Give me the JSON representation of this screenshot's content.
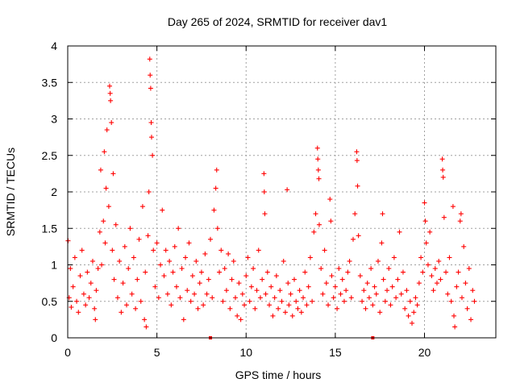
{
  "chart_data": {
    "type": "scatter",
    "title": "Day 265 of 2024, SRMTID for receiver dav1",
    "xlabel": "GPS time / hours",
    "ylabel": "SRMTID / TECUs",
    "xlim": [
      0,
      24
    ],
    "ylim": [
      0,
      4
    ],
    "x_ticks": [
      0,
      5,
      10,
      15,
      20
    ],
    "x_tick_labels": [
      "0",
      "5",
      "10",
      "15",
      "20"
    ],
    "y_ticks": [
      0,
      0.5,
      1,
      1.5,
      2,
      2.5,
      3,
      3.5,
      4
    ],
    "y_tick_labels": [
      "0",
      "0.5",
      "1",
      "1.5",
      "2",
      "2.5",
      "3",
      "3.5",
      "4"
    ],
    "grid": true,
    "marker": "+",
    "series": [
      {
        "name": "SRMTID",
        "color": "#ff0000",
        "points": [
          [
            0.02,
            1.33
          ],
          [
            0.08,
            0.55
          ],
          [
            0.15,
            0.95
          ],
          [
            0.2,
            0.42
          ],
          [
            0.3,
            0.7
          ],
          [
            0.4,
            1.1
          ],
          [
            0.5,
            0.5
          ],
          [
            0.6,
            0.35
          ],
          [
            0.7,
            0.85
          ],
          [
            0.8,
            1.2
          ],
          [
            0.9,
            0.6
          ],
          [
            1.0,
            0.45
          ],
          [
            1.1,
            0.9
          ],
          [
            1.2,
            0.55
          ],
          [
            1.3,
            0.75
          ],
          [
            1.4,
            1.05
          ],
          [
            1.5,
            0.4
          ],
          [
            1.55,
            0.25
          ],
          [
            1.6,
            0.65
          ],
          [
            1.7,
            0.95
          ],
          [
            1.8,
            1.45
          ],
          [
            1.85,
            2.3
          ],
          [
            1.9,
            1.0
          ],
          [
            2.0,
            1.6
          ],
          [
            2.05,
            2.55
          ],
          [
            2.1,
            1.3
          ],
          [
            2.15,
            2.05
          ],
          [
            2.2,
            2.85
          ],
          [
            2.3,
            1.8
          ],
          [
            2.35,
            3.45
          ],
          [
            2.38,
            3.35
          ],
          [
            2.4,
            3.25
          ],
          [
            2.45,
            2.95
          ],
          [
            2.5,
            1.2
          ],
          [
            2.55,
            2.25
          ],
          [
            2.6,
            0.8
          ],
          [
            2.7,
            1.55
          ],
          [
            2.8,
            0.55
          ],
          [
            2.9,
            1.05
          ],
          [
            3.0,
            0.35
          ],
          [
            3.1,
            0.75
          ],
          [
            3.2,
            1.25
          ],
          [
            3.3,
            0.45
          ],
          [
            3.4,
            0.95
          ],
          [
            3.5,
            1.5
          ],
          [
            3.6,
            0.6
          ],
          [
            3.7,
            1.1
          ],
          [
            3.8,
            0.4
          ],
          [
            3.9,
            0.8
          ],
          [
            4.0,
            1.35
          ],
          [
            4.1,
            0.5
          ],
          [
            4.2,
            1.8
          ],
          [
            4.3,
            0.25
          ],
          [
            4.35,
            0.9
          ],
          [
            4.4,
            0.15
          ],
          [
            4.5,
            1.4
          ],
          [
            4.55,
            2.0
          ],
          [
            4.6,
            3.82
          ],
          [
            4.62,
            3.6
          ],
          [
            4.65,
            3.42
          ],
          [
            4.68,
            2.95
          ],
          [
            4.7,
            2.75
          ],
          [
            4.75,
            2.5
          ],
          [
            4.8,
            1.2
          ],
          [
            4.9,
            0.7
          ],
          [
            5.0,
            1.3
          ],
          [
            5.1,
            0.55
          ],
          [
            5.2,
            1.0
          ],
          [
            5.3,
            1.75
          ],
          [
            5.4,
            0.85
          ],
          [
            5.5,
            1.2
          ],
          [
            5.6,
            0.6
          ],
          [
            5.7,
            1.05
          ],
          [
            5.8,
            0.45
          ],
          [
            5.9,
            0.9
          ],
          [
            6.0,
            1.25
          ],
          [
            6.1,
            0.7
          ],
          [
            6.2,
            1.5
          ],
          [
            6.3,
            0.55
          ],
          [
            6.4,
            0.95
          ],
          [
            6.5,
            0.25
          ],
          [
            6.6,
            1.1
          ],
          [
            6.7,
            0.65
          ],
          [
            6.8,
            1.3
          ],
          [
            6.9,
            0.5
          ],
          [
            7.0,
            0.85
          ],
          [
            7.1,
            0.6
          ],
          [
            7.2,
            1.05
          ],
          [
            7.3,
            0.4
          ],
          [
            7.4,
            0.75
          ],
          [
            7.5,
            0.9
          ],
          [
            7.6,
            0.45
          ],
          [
            7.7,
            1.15
          ],
          [
            7.8,
            0.6
          ],
          [
            7.9,
            0.8
          ],
          [
            8.0,
            1.35
          ],
          [
            8.1,
            0.55
          ],
          [
            8.2,
            1.75
          ],
          [
            8.3,
            2.05
          ],
          [
            8.35,
            2.3
          ],
          [
            8.4,
            1.5
          ],
          [
            8.5,
            0.9
          ],
          [
            8.6,
            1.2
          ],
          [
            8.7,
            0.5
          ],
          [
            8.8,
            0.95
          ],
          [
            8.9,
            0.65
          ],
          [
            9.0,
            1.15
          ],
          [
            9.1,
            0.4
          ],
          [
            9.2,
            0.8
          ],
          [
            9.3,
            1.05
          ],
          [
            9.4,
            0.55
          ],
          [
            9.5,
            0.3
          ],
          [
            9.6,
            0.75
          ],
          [
            9.7,
            0.25
          ],
          [
            9.8,
            0.6
          ],
          [
            9.9,
            0.45
          ],
          [
            10.0,
            0.85
          ],
          [
            10.1,
            1.1
          ],
          [
            10.2,
            0.5
          ],
          [
            10.3,
            0.7
          ],
          [
            10.4,
            0.95
          ],
          [
            10.5,
            0.4
          ],
          [
            10.6,
            0.65
          ],
          [
            10.7,
            1.2
          ],
          [
            10.8,
            0.55
          ],
          [
            10.9,
            0.8
          ],
          [
            11.0,
            2.25
          ],
          [
            11.02,
            2.0
          ],
          [
            11.05,
            1.7
          ],
          [
            11.1,
            0.6
          ],
          [
            11.2,
            0.9
          ],
          [
            11.3,
            0.45
          ],
          [
            11.4,
            0.7
          ],
          [
            11.5,
            0.3
          ],
          [
            11.6,
            0.55
          ],
          [
            11.7,
            0.85
          ],
          [
            11.8,
            0.4
          ],
          [
            11.9,
            0.65
          ],
          [
            12.0,
            0.5
          ],
          [
            12.1,
            1.05
          ],
          [
            12.2,
            0.35
          ],
          [
            12.3,
            2.03
          ],
          [
            12.35,
            0.75
          ],
          [
            12.4,
            0.45
          ],
          [
            12.5,
            0.6
          ],
          [
            12.6,
            0.3
          ],
          [
            12.7,
            0.8
          ],
          [
            12.8,
            0.5
          ],
          [
            12.9,
            0.4
          ],
          [
            13.0,
            0.65
          ],
          [
            13.1,
            0.35
          ],
          [
            13.2,
            0.55
          ],
          [
            13.3,
            0.9
          ],
          [
            13.4,
            0.45
          ],
          [
            13.5,
            0.7
          ],
          [
            13.6,
            1.1
          ],
          [
            13.7,
            0.5
          ],
          [
            13.8,
            1.45
          ],
          [
            13.9,
            1.7
          ],
          [
            14.0,
            2.6
          ],
          [
            14.02,
            2.45
          ],
          [
            14.05,
            2.3
          ],
          [
            14.08,
            2.18
          ],
          [
            14.1,
            1.55
          ],
          [
            14.2,
            0.95
          ],
          [
            14.3,
            0.6
          ],
          [
            14.4,
            1.2
          ],
          [
            14.5,
            0.75
          ],
          [
            14.6,
            0.45
          ],
          [
            14.7,
            1.9
          ],
          [
            14.75,
            1.6
          ],
          [
            14.8,
            0.85
          ],
          [
            14.9,
            0.55
          ],
          [
            15.0,
            0.7
          ],
          [
            15.1,
            0.4
          ],
          [
            15.2,
            0.95
          ],
          [
            15.3,
            0.6
          ],
          [
            15.4,
            0.8
          ],
          [
            15.5,
            0.5
          ],
          [
            15.6,
            0.65
          ],
          [
            15.7,
            0.9
          ],
          [
            15.8,
            1.05
          ],
          [
            15.9,
            0.55
          ],
          [
            16.0,
            1.35
          ],
          [
            16.1,
            1.7
          ],
          [
            16.2,
            2.55
          ],
          [
            16.22,
            2.43
          ],
          [
            16.25,
            2.08
          ],
          [
            16.3,
            1.4
          ],
          [
            16.4,
            0.85
          ],
          [
            16.5,
            0.5
          ],
          [
            16.6,
            0.65
          ],
          [
            16.7,
            0.4
          ],
          [
            16.8,
            0.75
          ],
          [
            16.9,
            0.55
          ],
          [
            17.0,
            0.95
          ],
          [
            17.1,
            0.45
          ],
          [
            17.2,
            0.7
          ],
          [
            17.3,
            0.6
          ],
          [
            17.4,
            1.05
          ],
          [
            17.5,
            0.35
          ],
          [
            17.6,
            1.3
          ],
          [
            17.65,
            1.7
          ],
          [
            17.7,
            0.8
          ],
          [
            17.8,
            0.5
          ],
          [
            17.9,
            0.65
          ],
          [
            18.0,
            0.95
          ],
          [
            18.1,
            0.45
          ],
          [
            18.2,
            0.7
          ],
          [
            18.3,
            1.1
          ],
          [
            18.4,
            0.55
          ],
          [
            18.5,
            0.8
          ],
          [
            18.6,
            1.45
          ],
          [
            18.7,
            0.6
          ],
          [
            18.8,
            0.9
          ],
          [
            18.9,
            0.4
          ],
          [
            19.0,
            0.65
          ],
          [
            19.1,
            0.3
          ],
          [
            19.2,
            0.5
          ],
          [
            19.3,
            0.2
          ],
          [
            19.4,
            0.35
          ],
          [
            19.5,
            0.55
          ],
          [
            19.6,
            0.45
          ],
          [
            19.7,
            0.75
          ],
          [
            19.8,
            1.1
          ],
          [
            19.9,
            0.9
          ],
          [
            20.0,
            1.85
          ],
          [
            20.05,
            1.6
          ],
          [
            20.1,
            1.3
          ],
          [
            20.2,
            1.0
          ],
          [
            20.3,
            1.45
          ],
          [
            20.4,
            0.85
          ],
          [
            20.5,
            0.65
          ],
          [
            20.6,
            0.95
          ],
          [
            20.7,
            0.75
          ],
          [
            20.8,
            1.05
          ],
          [
            20.9,
            0.8
          ],
          [
            21.0,
            2.45
          ],
          [
            21.02,
            2.3
          ],
          [
            21.05,
            2.2
          ],
          [
            21.1,
            1.65
          ],
          [
            21.2,
            0.9
          ],
          [
            21.3,
            0.6
          ],
          [
            21.4,
            1.1
          ],
          [
            21.5,
            0.5
          ],
          [
            21.6,
            1.8
          ],
          [
            21.65,
            0.3
          ],
          [
            21.7,
            0.15
          ],
          [
            21.8,
            0.7
          ],
          [
            21.9,
            0.9
          ],
          [
            22.0,
            1.6
          ],
          [
            22.05,
            1.7
          ],
          [
            22.1,
            0.55
          ],
          [
            22.2,
            1.25
          ],
          [
            22.3,
            0.75
          ],
          [
            22.4,
            0.4
          ],
          [
            22.5,
            0.95
          ],
          [
            22.6,
            0.25
          ],
          [
            22.7,
            0.65
          ],
          [
            22.8,
            0.5
          ]
        ]
      }
    ],
    "gap_markers": [
      8.0,
      17.1
    ]
  }
}
